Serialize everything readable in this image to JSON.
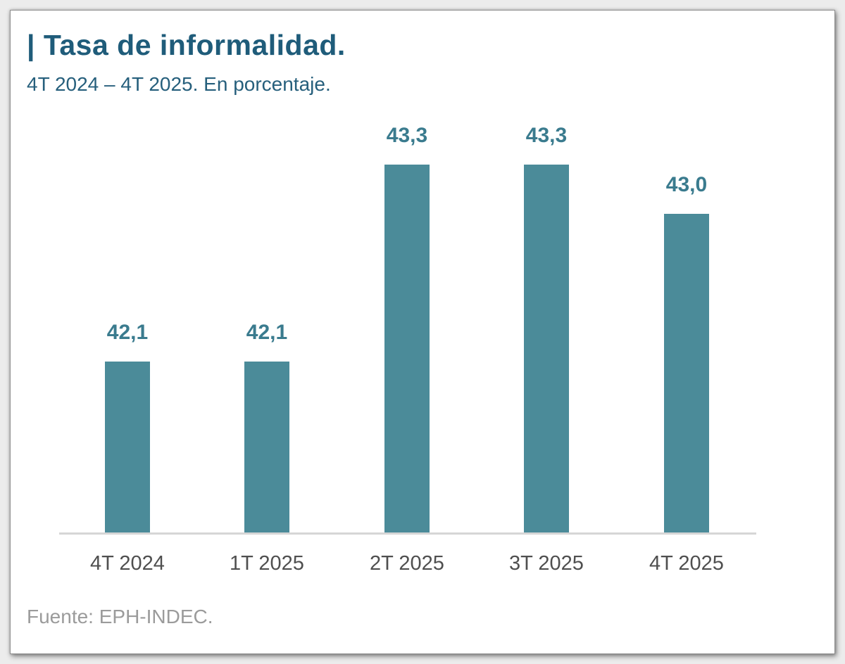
{
  "header": {
    "title": "| Tasa de informalidad.",
    "subtitle": "4T 2024 – 4T 2025. En porcentaje."
  },
  "footer": {
    "source": "Fuente: EPH-INDEC."
  },
  "colors": {
    "page_bg": "#ececec",
    "card_bg": "#ffffff",
    "title_text": "#1f5c7a",
    "subtitle_text": "#265f7c",
    "bar": "#4b8b99",
    "value_label": "#3a7b8e",
    "axis_label": "#4f4f4f",
    "axis_line": "#d6d6d6",
    "source_text": "#9b9b9b"
  },
  "chart_data": {
    "type": "bar",
    "title": "Tasa de informalidad.",
    "subtitle": "4T 2024 – 4T 2025. En porcentaje.",
    "categories": [
      "4T 2024",
      "1T 2025",
      "2T 2025",
      "3T 2025",
      "4T 2025"
    ],
    "values": [
      42.1,
      42.1,
      43.3,
      43.3,
      43.0
    ],
    "value_labels": [
      "42,1",
      "42,1",
      "43,3",
      "43,3",
      "43,0"
    ],
    "xlabel": "",
    "ylabel": "",
    "unit": "%",
    "ylim": [
      41.05,
      44.1
    ],
    "grid": false,
    "legend": false,
    "source": "EPH-INDEC"
  }
}
